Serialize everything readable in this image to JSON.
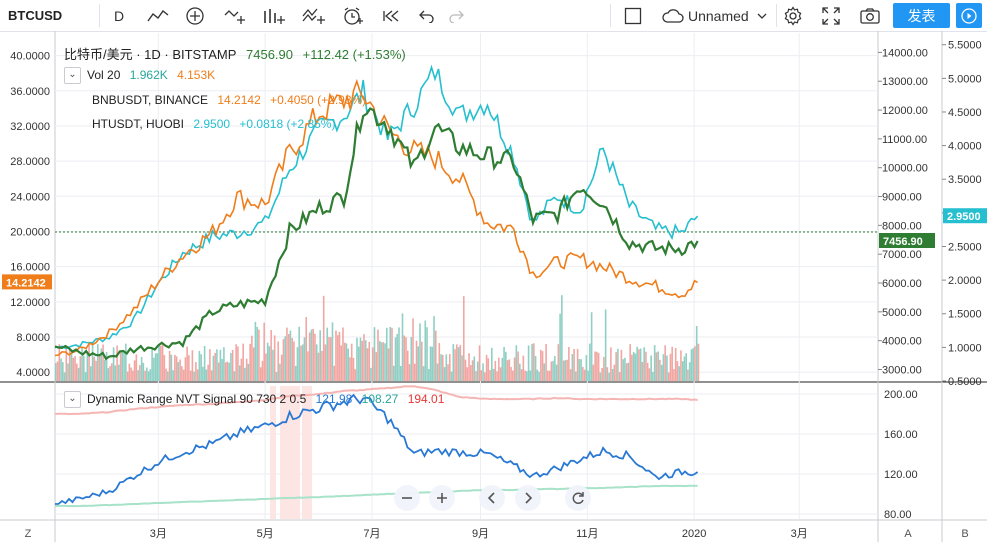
{
  "toolbar": {
    "symbol": "BTCUSD",
    "interval": "D",
    "layout_name": "Unnamed",
    "publish_label": "发表",
    "icons": [
      "line-chart-icon",
      "add-indicator-icon",
      "compare-icon",
      "bar-style-icon",
      "indicators-icon",
      "alert-clock-icon",
      "replay-icon",
      "undo-icon",
      "redo-icon",
      "fullscreen-square-icon",
      "cloud-icon",
      "chevron-down-icon",
      "gear-icon",
      "expand-icon",
      "camera-icon",
      "play-icon"
    ]
  },
  "legend": {
    "main_title": "比特币/美元 · 1D · BITSTAMP",
    "main_price": "7456.90",
    "main_change": "+112.42 (+1.53%)",
    "vol_label": "Vol 20",
    "vol_value1": "1.962K",
    "vol_value2": "4.153K",
    "bnb_label": "BNBUSDT, BINANCE",
    "bnb_price": "14.2142",
    "bnb_change": "+0.4050 (+2.93%)",
    "ht_label": "HTUSDT, HUOBI",
    "ht_price": "2.9500",
    "ht_change": "+0.0818 (+2.85%)",
    "nvt_label": "Dynamic Range NVT Signal 90 730 2 0.5",
    "nvt_v1": "121.98",
    "nvt_v2": "108.27",
    "nvt_v3": "194.01"
  },
  "colors": {
    "btc": "#2e7d32",
    "bnb": "#ef7d1a",
    "ht": "#26bfcf",
    "vol_up": "#8fcfc4",
    "vol_down": "#f2a6a2",
    "nvt": "#2979d4",
    "nvt_upper": "#f5b5b3",
    "nvt_lower": "#a7e2c9",
    "accent": "#2196f3"
  },
  "axes": {
    "left_ticks": [
      "40.0000",
      "36.0000",
      "32.0000",
      "28.0000",
      "24.0000",
      "20.0000",
      "16.0000",
      "12.0000",
      "8.0000",
      "4.0000"
    ],
    "mid_ticks": [
      "14000.00",
      "13000.00",
      "12000.00",
      "11000.00",
      "10000.00",
      "9000.00",
      "8000.00",
      "7000.00",
      "6000.00",
      "5000.00",
      "4000.00",
      "3000.00"
    ],
    "right_ticks": [
      "5.5000",
      "5.0000",
      "4.5000",
      "4.0000",
      "3.5000",
      "3.0000",
      "2.5000",
      "2.0000",
      "1.5000",
      "1.0000",
      "0.5000"
    ],
    "nvt_ticks": [
      "200.00",
      "160.00",
      "120.00",
      "80.00"
    ],
    "x_ticks": [
      "3月",
      "5月",
      "7月",
      "9月",
      "11月",
      "2020",
      "3月"
    ],
    "bnb_badge": "14.2142",
    "btc_badge": "7456.90",
    "ht_badge": "2.9500",
    "scale_left": "Z",
    "scale_a": "A",
    "scale_b": "B"
  },
  "chart_data": {
    "type": "line",
    "x": [
      "2019-01-01",
      "2019-01-15",
      "2019-02-01",
      "2019-02-15",
      "2019-03-01",
      "2019-03-15",
      "2019-04-01",
      "2019-04-15",
      "2019-05-01",
      "2019-05-15",
      "2019-06-01",
      "2019-06-15",
      "2019-06-26",
      "2019-07-10",
      "2019-07-25",
      "2019-08-06",
      "2019-08-20",
      "2019-09-05",
      "2019-09-20",
      "2019-10-01",
      "2019-10-15",
      "2019-10-28",
      "2019-11-10",
      "2019-11-25",
      "2019-12-10",
      "2019-12-25",
      "2020-01-03"
    ],
    "series": [
      {
        "name": "BTCUSD",
        "axis": "price",
        "values": [
          3800,
          3600,
          3450,
          3700,
          3850,
          3950,
          5000,
          5250,
          5400,
          7800,
          8600,
          9000,
          12200,
          11500,
          10000,
          11400,
          10700,
          10400,
          10200,
          8200,
          8400,
          9400,
          8800,
          7400,
          7200,
          7200,
          7456.9
        ]
      },
      {
        "name": "BNBUSDT",
        "axis": "left",
        "values": [
          5.9,
          6.5,
          8.5,
          11.1,
          14.4,
          17.3,
          19.9,
          23.9,
          23.1,
          29.0,
          33.5,
          34.9,
          35.7,
          31.5,
          29.1,
          28.4,
          26.0,
          21.0,
          20.3,
          15.2,
          16.5,
          16.9,
          16.0,
          14.7,
          13.8,
          12.9,
          14.2142
        ]
      },
      {
        "name": "HTUSDT",
        "axis": "right",
        "values": [
          1.0,
          1.04,
          1.15,
          1.4,
          1.95,
          2.4,
          2.65,
          2.7,
          2.85,
          3.65,
          4.25,
          4.45,
          4.8,
          4.1,
          4.6,
          5.1,
          4.45,
          4.65,
          3.85,
          2.85,
          3.25,
          3.05,
          3.95,
          3.1,
          2.75,
          2.7,
          2.95
        ]
      }
    ],
    "nvt": {
      "name": "Dynamic Range NVT Signal",
      "values": [
        90,
        95,
        103,
        118,
        132,
        142,
        150,
        160,
        168,
        178,
        186,
        192,
        196,
        176,
        140,
        143,
        142,
        140,
        128,
        118,
        126,
        135,
        143,
        138,
        117,
        122,
        121.98
      ],
      "upper_band": [
        180,
        180,
        182,
        185,
        187,
        189,
        190,
        192,
        194,
        198,
        200,
        203,
        204,
        206,
        208,
        204,
        197,
        195,
        195,
        195,
        196,
        195,
        195,
        195,
        195,
        195,
        194.01
      ],
      "lower_band": [
        88,
        88,
        89,
        90,
        91,
        92,
        93,
        94,
        95,
        96,
        97,
        98,
        99,
        100,
        101,
        102,
        103,
        104,
        104,
        105,
        105,
        106,
        106,
        107,
        108,
        108,
        108.27
      ]
    },
    "volume": {
      "name": "Vol 20"
    },
    "price_ylim": [
      2600,
      14500
    ],
    "left_ylim": [
      3.0,
      42.0
    ],
    "right_ylim": [
      0.5,
      5.6
    ],
    "nvt_ylim": [
      75,
      210
    ],
    "grid": true
  },
  "overlay_controls": [
    "minus-icon",
    "plus-icon",
    "chevron-left-icon",
    "chevron-right-icon",
    "reset-icon"
  ]
}
